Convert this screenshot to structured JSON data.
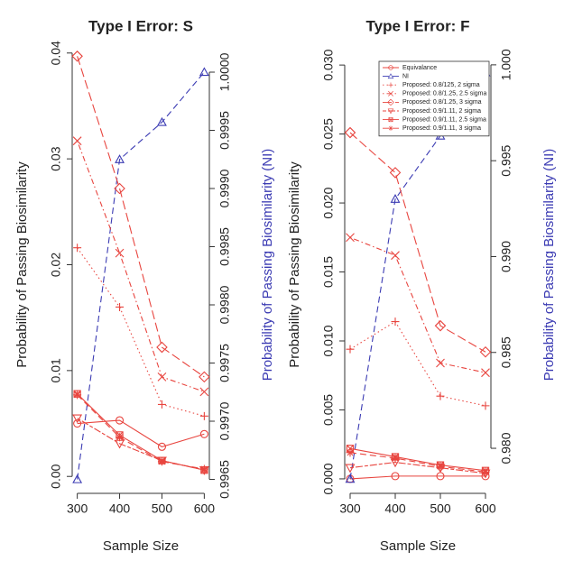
{
  "chart_data": [
    {
      "type": "line",
      "title": "Type I Error: S",
      "xlabel": "Sample Size",
      "ylabel": "Probability of Passing Biosimilarity",
      "y2label": "Probability of Passing Biosimilarity (NI)",
      "x": [
        300,
        400,
        500,
        600
      ],
      "xlim": [
        288,
        612
      ],
      "xticks": [
        300,
        400,
        500,
        600
      ],
      "ylim": [
        -0.0016,
        0.0416
      ],
      "yticks": [
        {
          "value": 0,
          "label": "0.00"
        },
        0.01,
        0.02,
        0.03,
        0.04
      ],
      "y2lim": [
        0.99638,
        1.00031
      ],
      "y2ticks": [
        0.9965,
        {
          "value": 0.997,
          "label": "0.9970"
        },
        0.9975,
        {
          "value": 0.998,
          "label": "0.9980"
        },
        0.9985,
        {
          "value": 0.999,
          "label": "0.9990"
        },
        0.9995,
        {
          "value": 1,
          "label": "1.0000"
        }
      ],
      "y2color": "#3b3bb3",
      "series": [
        {
          "color": "#e8453f",
          "marker": "circle",
          "dash": "solid",
          "values": [
            0.005,
            0.0053,
            0.0028,
            0.004
          ]
        },
        {
          "color": "#3b3bb3",
          "marker": "triangle",
          "dash": "dashed",
          "axis": "y2",
          "values": [
            0.9965,
            0.99925,
            0.99957,
            1.0
          ]
        },
        {
          "color": "#e8453f",
          "marker": "plus",
          "dash": "dotted",
          "values": [
            0.0216,
            0.016,
            0.0068,
            0.0057
          ]
        },
        {
          "color": "#e8453f",
          "marker": "cross",
          "dash": "dotdash",
          "values": [
            0.0317,
            0.0211,
            0.0094,
            0.008
          ]
        },
        {
          "color": "#e8453f",
          "marker": "diamond",
          "dash": "longdash",
          "values": [
            0.0397,
            0.0272,
            0.0122,
            0.0094
          ]
        },
        {
          "color": "#e8453f",
          "marker": "triangle-down",
          "dash": "twodash",
          "values": [
            0.0055,
            0.0031,
            0.0015,
            0.0006
          ]
        },
        {
          "color": "#e8453f",
          "marker": "square",
          "dash": "solid",
          "values": [
            0.0078,
            0.0039,
            0.0015,
            0.0006
          ]
        },
        {
          "color": "#e8453f",
          "marker": "star",
          "dash": "dashed",
          "values": [
            0.0077,
            0.0037,
            0.0014,
            0.0007
          ]
        }
      ]
    },
    {
      "type": "line",
      "title": "Type I Error: F",
      "xlabel": "Sample Size",
      "ylabel": "Probability of Passing Biosimilarity",
      "y2label": "Probability of Passing Biosimilarity (NI)",
      "x": [
        300,
        400,
        500,
        600
      ],
      "xlim": [
        288,
        612
      ],
      "xticks": [
        300,
        400,
        500,
        600
      ],
      "ylim": [
        -0.00105,
        0.0321
      ],
      "yticks": [
        {
          "value": 0,
          "label": "0.000"
        },
        0.005,
        {
          "value": 0.01,
          "label": "0.010"
        },
        0.015,
        {
          "value": 0.02,
          "label": "0.020"
        },
        0.025,
        {
          "value": 0.03,
          "label": "0.030"
        }
      ],
      "y2lim": [
        0.97765,
        1.0015
      ],
      "y2ticks": [
        {
          "value": 0.98,
          "label": "0.980"
        },
        0.985,
        {
          "value": 0.99,
          "label": "0.990"
        },
        0.995,
        {
          "value": 1,
          "label": "1.000"
        }
      ],
      "y2color": "#3b3bb3",
      "legend": "top-right",
      "series": [
        {
          "name": "Equivalance",
          "color": "#e8453f",
          "marker": "circle",
          "dash": "solid",
          "values": [
            0.0,
            0.0002,
            0.0002,
            0.0002
          ]
        },
        {
          "name": "NI",
          "color": "#3b3bb3",
          "marker": "triangle",
          "dash": "dashed",
          "axis": "y2",
          "values": [
            0.9784,
            0.993,
            0.9963,
            0.9996
          ]
        },
        {
          "name": "Proposed: 0.8/125, 2 sigma",
          "color": "#e8453f",
          "marker": "plus",
          "dash": "dotted",
          "values": [
            0.0094,
            0.0114,
            0.006,
            0.0053
          ]
        },
        {
          "name": "Proposed: 0.8/1.25, 2.5 sigma",
          "color": "#e8453f",
          "marker": "cross",
          "dash": "dotdash",
          "values": [
            0.0175,
            0.0162,
            0.0084,
            0.0077
          ]
        },
        {
          "name": "Proposed: 0.8/1.25, 3 sigma",
          "color": "#e8453f",
          "marker": "diamond",
          "dash": "longdash",
          "values": [
            0.0251,
            0.0222,
            0.0111,
            0.0092
          ]
        },
        {
          "name": "Proposed: 0.9/1.11, 2 sigma",
          "color": "#e8453f",
          "marker": "triangle-down",
          "dash": "twodash",
          "values": [
            0.0008,
            0.0012,
            0.0008,
            0.0004
          ]
        },
        {
          "name": "Proposed: 0.9/1.11, 2.5 sigma",
          "color": "#e8453f",
          "marker": "square",
          "dash": "solid",
          "values": [
            0.0022,
            0.0016,
            0.001,
            0.0006
          ]
        },
        {
          "name": "Proposed: 0.9/1.11, 3 sigma",
          "color": "#e8453f",
          "marker": "star",
          "dash": "dashed",
          "values": [
            0.0019,
            0.0015,
            0.0009,
            0.0005
          ]
        }
      ]
    }
  ]
}
